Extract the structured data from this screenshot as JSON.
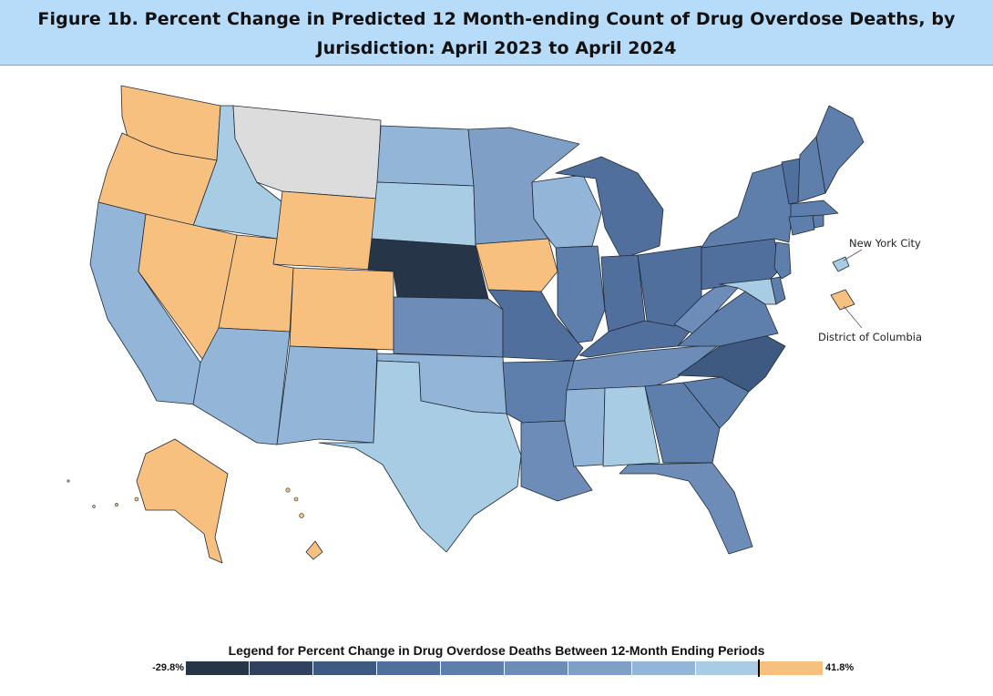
{
  "title": {
    "line1": "Figure 1b. Percent Change in Predicted 12 Month-ending Count of Drug Overdose Deaths, by",
    "line2": "Jurisdiction: April 2023 to April 2024"
  },
  "palette": {
    "orange": "#f8c07f",
    "light_blue": "#a8cce4",
    "mid_light_blue": "#92b5d8",
    "mid_blue": "#7f9fc6",
    "steel_blue": "#6d8db8",
    "blue": "#5e7eab",
    "dark_blue": "#516f9c",
    "darker_blue": "#3f5a80",
    "darkest": "#263548",
    "no_data": "#dcdcdc"
  },
  "states": [
    {
      "id": "WA",
      "name": "Washington",
      "color": "orange"
    },
    {
      "id": "OR",
      "name": "Oregon",
      "color": "orange"
    },
    {
      "id": "CA",
      "name": "California",
      "color": "mid_light_blue"
    },
    {
      "id": "ID",
      "name": "Idaho",
      "color": "light_blue"
    },
    {
      "id": "NV",
      "name": "Nevada",
      "color": "orange"
    },
    {
      "id": "MT",
      "name": "Montana",
      "color": "no_data"
    },
    {
      "id": "WY",
      "name": "Wyoming",
      "color": "orange"
    },
    {
      "id": "UT",
      "name": "Utah",
      "color": "orange"
    },
    {
      "id": "CO",
      "name": "Colorado",
      "color": "orange"
    },
    {
      "id": "AZ",
      "name": "Arizona",
      "color": "mid_light_blue"
    },
    {
      "id": "NM",
      "name": "New Mexico",
      "color": "mid_light_blue"
    },
    {
      "id": "ND",
      "name": "North Dakota",
      "color": "mid_light_blue"
    },
    {
      "id": "SD",
      "name": "South Dakota",
      "color": "light_blue"
    },
    {
      "id": "NE",
      "name": "Nebraska",
      "color": "darkest"
    },
    {
      "id": "KS",
      "name": "Kansas",
      "color": "steel_blue"
    },
    {
      "id": "OK",
      "name": "Oklahoma",
      "color": "mid_light_blue"
    },
    {
      "id": "TX",
      "name": "Texas",
      "color": "light_blue"
    },
    {
      "id": "MN",
      "name": "Minnesota",
      "color": "mid_blue"
    },
    {
      "id": "IA",
      "name": "Iowa",
      "color": "orange"
    },
    {
      "id": "MO",
      "name": "Missouri",
      "color": "dark_blue"
    },
    {
      "id": "AR",
      "name": "Arkansas",
      "color": "blue"
    },
    {
      "id": "LA",
      "name": "Louisiana",
      "color": "steel_blue"
    },
    {
      "id": "WI",
      "name": "Wisconsin",
      "color": "mid_light_blue"
    },
    {
      "id": "IL",
      "name": "Illinois",
      "color": "blue"
    },
    {
      "id": "MI",
      "name": "Michigan",
      "color": "dark_blue"
    },
    {
      "id": "IN",
      "name": "Indiana",
      "color": "dark_blue"
    },
    {
      "id": "OH",
      "name": "Ohio",
      "color": "dark_blue"
    },
    {
      "id": "KY",
      "name": "Kentucky",
      "color": "dark_blue"
    },
    {
      "id": "TN",
      "name": "Tennessee",
      "color": "steel_blue"
    },
    {
      "id": "MS",
      "name": "Mississippi",
      "color": "mid_light_blue"
    },
    {
      "id": "AL",
      "name": "Alabama",
      "color": "light_blue"
    },
    {
      "id": "GA",
      "name": "Georgia",
      "color": "blue"
    },
    {
      "id": "FL",
      "name": "Florida",
      "color": "steel_blue"
    },
    {
      "id": "SC",
      "name": "South Carolina",
      "color": "blue"
    },
    {
      "id": "NC",
      "name": "North Carolina",
      "color": "darker_blue"
    },
    {
      "id": "VA",
      "name": "Virginia",
      "color": "blue"
    },
    {
      "id": "WV",
      "name": "West Virginia",
      "color": "steel_blue"
    },
    {
      "id": "PA",
      "name": "Pennsylvania",
      "color": "dark_blue"
    },
    {
      "id": "NY",
      "name": "New York",
      "color": "blue"
    },
    {
      "id": "MD",
      "name": "Maryland",
      "color": "light_blue"
    },
    {
      "id": "DE",
      "name": "Delaware",
      "color": "blue"
    },
    {
      "id": "NJ",
      "name": "New Jersey",
      "color": "blue"
    },
    {
      "id": "CT",
      "name": "Connecticut",
      "color": "blue"
    },
    {
      "id": "RI",
      "name": "Rhode Island",
      "color": "blue"
    },
    {
      "id": "MA",
      "name": "Massachusetts",
      "color": "blue"
    },
    {
      "id": "VT",
      "name": "Vermont",
      "color": "dark_blue"
    },
    {
      "id": "NH",
      "name": "New Hampshire",
      "color": "blue"
    },
    {
      "id": "ME",
      "name": "Maine",
      "color": "blue"
    },
    {
      "id": "AK",
      "name": "Alaska",
      "color": "orange"
    },
    {
      "id": "HI",
      "name": "Hawaii",
      "color": "orange"
    },
    {
      "id": "NYC",
      "name": "New York City",
      "color": "light_blue"
    },
    {
      "id": "DC",
      "name": "District of Columbia",
      "color": "orange"
    }
  ],
  "callouts": {
    "nyc": "New York City",
    "dc": "District of Columbia"
  },
  "legend": {
    "title": "Legend for Percent Change in Drug Overdose Deaths Between 12-Month Ending Periods",
    "min_label": "-29.8%",
    "max_label": "41.8%",
    "colors": [
      "#263548",
      "#2f4361",
      "#3f5a80",
      "#516f9c",
      "#5e7eab",
      "#6d8db8",
      "#7f9fc6",
      "#92b5d8",
      "#a8cce4",
      "#f8c07f"
    ]
  }
}
